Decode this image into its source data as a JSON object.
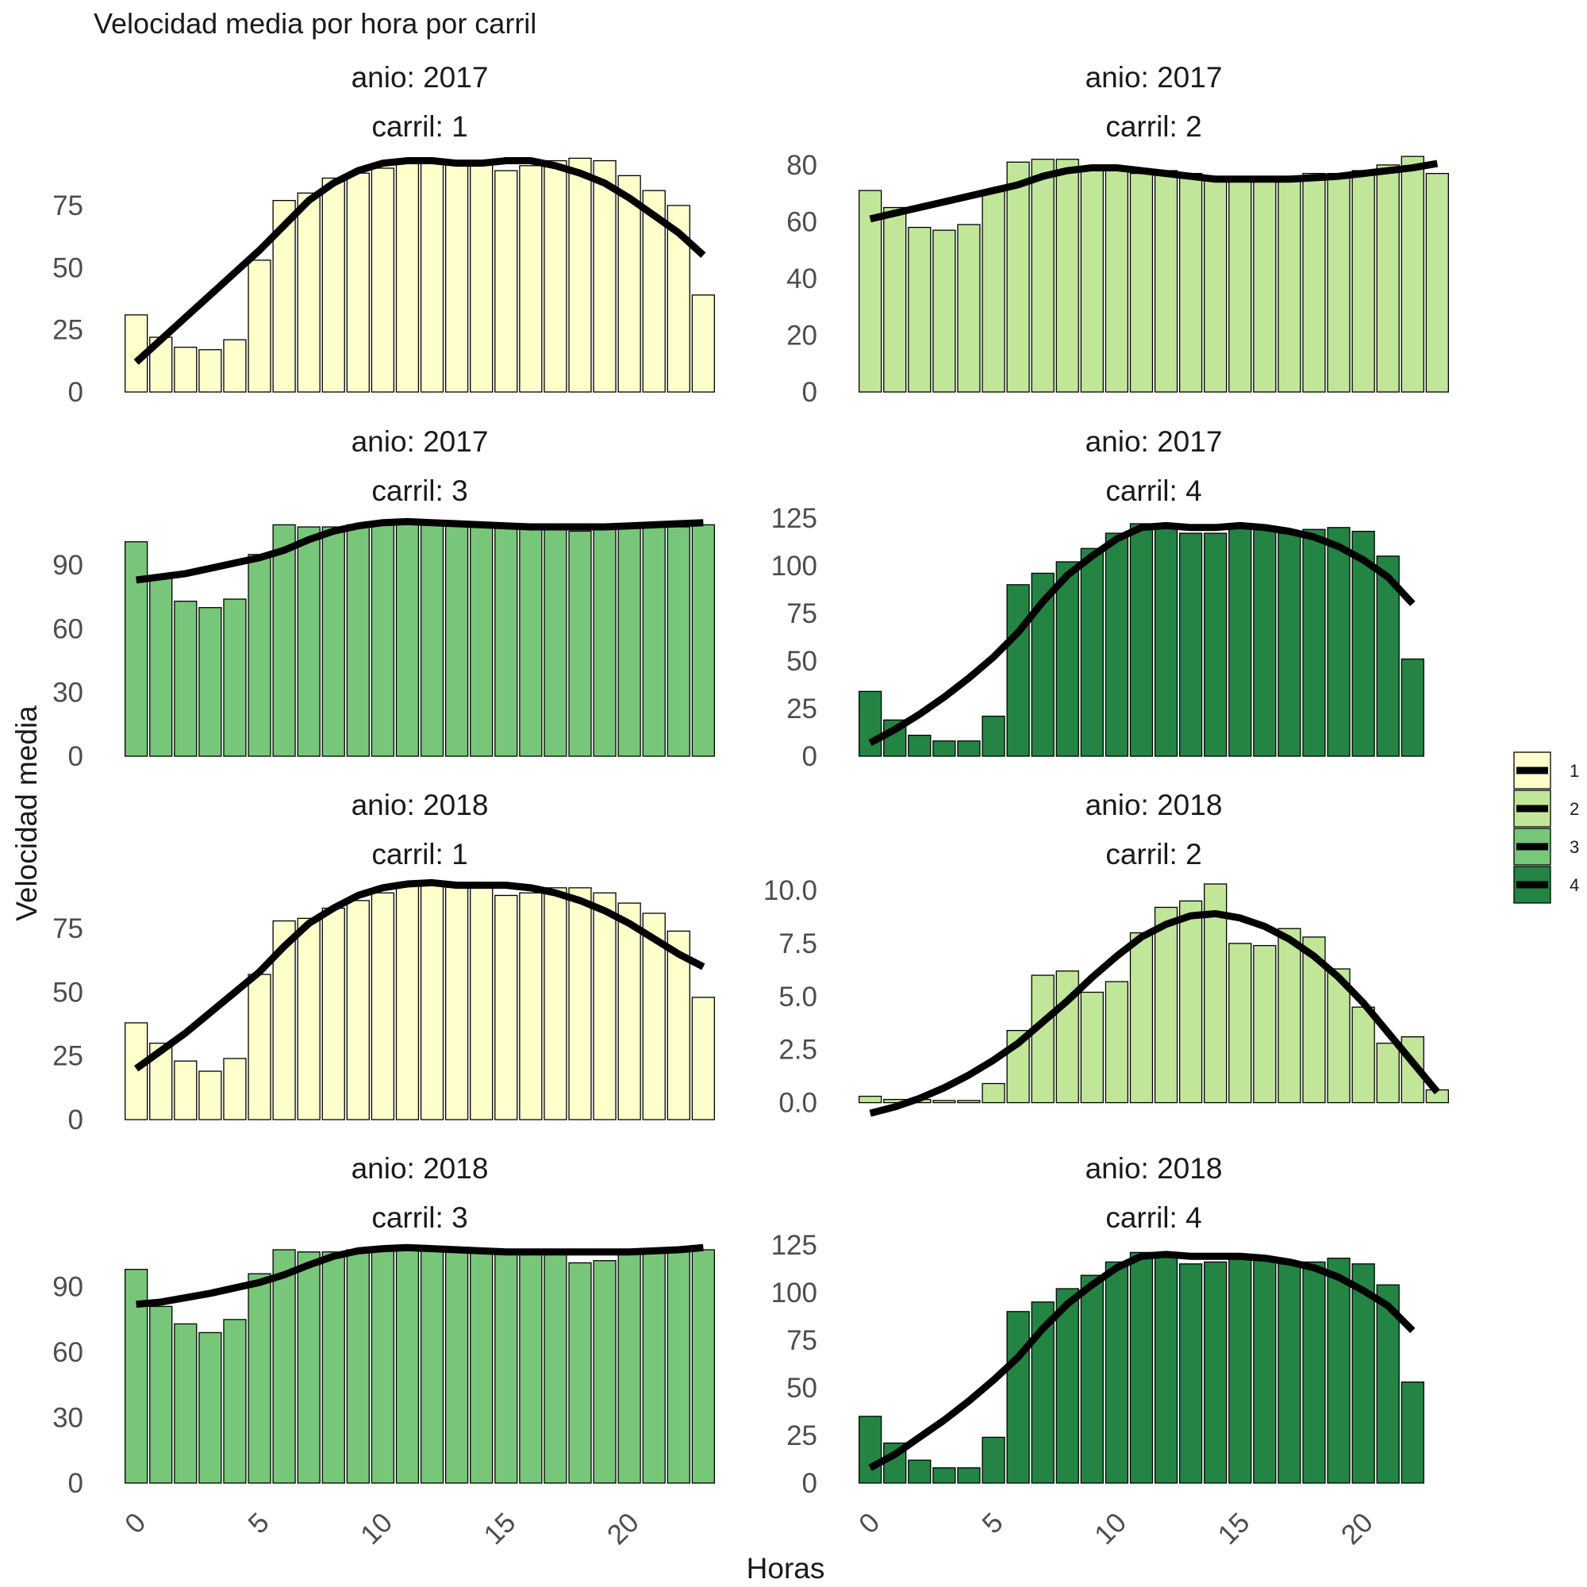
{
  "chart_data": {
    "type": "bar",
    "title": "Velocidad media por hora por carril",
    "xlabel": "Horas",
    "ylabel": "Velocidad media",
    "x_ticks": [
      0,
      5,
      10,
      15,
      20
    ],
    "xlim": [
      -0.6,
      23.6
    ],
    "legend": {
      "position": "right",
      "title": "",
      "entries": [
        {
          "label": "1",
          "color": "#FFFFCC"
        },
        {
          "label": "2",
          "color": "#C2E699"
        },
        {
          "label": "3",
          "color": "#78C679"
        },
        {
          "label": "4",
          "color": "#238443"
        }
      ]
    },
    "facets": [
      {
        "strip1": "anio: 2017",
        "strip2": "carril: 1",
        "fill": "#FFFFCC",
        "ylim": [
          0,
          97
        ],
        "yticks": [
          0,
          25,
          50,
          75
        ],
        "ytick_labels": [
          "0",
          "25",
          "50",
          "75"
        ],
        "values": [
          31,
          22,
          18,
          17,
          21,
          53,
          77,
          80,
          86,
          88,
          90,
          93,
          93,
          92,
          93,
          89,
          91,
          93,
          94,
          93,
          87,
          81,
          75,
          39
        ],
        "smooth": [
          12,
          21,
          30,
          39,
          48,
          57,
          67,
          77,
          84,
          89,
          92,
          93,
          93,
          92,
          92,
          93,
          93,
          91,
          88,
          84,
          78,
          71,
          64,
          55
        ]
      },
      {
        "strip1": "anio: 2017",
        "strip2": "carril: 2",
        "fill": "#C2E699",
        "ylim": [
          0,
          85
        ],
        "yticks": [
          0,
          20,
          40,
          60,
          80
        ],
        "ytick_labels": [
          "0",
          "20",
          "40",
          "60",
          "80"
        ],
        "values": [
          71,
          65,
          58,
          57,
          59,
          71,
          81,
          82,
          82,
          79,
          78,
          77,
          78,
          77,
          76,
          76,
          76,
          76,
          77,
          77,
          78,
          80,
          83,
          77
        ],
        "smooth": [
          61,
          63,
          65,
          67,
          69,
          71,
          73,
          76,
          78,
          79,
          79,
          78,
          77,
          76,
          75,
          75,
          75,
          75,
          75.5,
          76,
          77,
          78,
          79,
          80.5
        ]
      },
      {
        "strip1": "anio: 2017",
        "strip2": "carril: 3",
        "fill": "#78C679",
        "ylim": [
          0,
          114
        ],
        "yticks": [
          0,
          30,
          60,
          90
        ],
        "ytick_labels": [
          "0",
          "30",
          "60",
          "90"
        ],
        "values": [
          101,
          85,
          73,
          70,
          74,
          95,
          109,
          108,
          108,
          109,
          110,
          110,
          110,
          109,
          108,
          108,
          108,
          107,
          106,
          107,
          108,
          108,
          108,
          109
        ],
        "smooth": [
          83,
          84.5,
          86,
          88.5,
          91,
          93.5,
          97,
          102,
          106,
          108.5,
          110,
          110.5,
          110,
          109.5,
          109,
          108.5,
          108,
          108,
          108,
          108,
          108.5,
          109,
          109.5,
          110
        ]
      },
      {
        "strip1": "anio: 2017",
        "strip2": "carril: 4",
        "fill": "#238443",
        "ylim": [
          0,
          127
        ],
        "yticks": [
          0,
          25,
          50,
          75,
          100,
          125
        ],
        "ytick_labels": [
          "0",
          "25",
          "50",
          "75",
          "100",
          "125"
        ],
        "values": [
          34,
          19,
          11,
          8,
          8,
          21,
          90,
          96,
          102,
          109,
          117,
          122,
          121,
          117,
          117,
          120,
          119,
          117,
          119,
          120,
          118,
          105,
          51,
          0
        ],
        "smooth": [
          7,
          14,
          22,
          31,
          41,
          52,
          65,
          81,
          95,
          105,
          114,
          120,
          121,
          120,
          120,
          121,
          120,
          118,
          115,
          110,
          103,
          94,
          80,
          0
        ],
        "smooth_n": 23
      },
      {
        "strip1": "anio: 2018",
        "strip2": "carril: 1",
        "fill": "#FFFFCC",
        "ylim": [
          0,
          95
        ],
        "yticks": [
          0,
          25,
          50,
          75
        ],
        "ytick_labels": [
          "0",
          "25",
          "50",
          "75"
        ],
        "values": [
          38,
          30,
          23,
          19,
          24,
          57,
          78,
          79,
          83,
          86,
          89,
          93,
          93,
          92,
          91,
          88,
          89,
          91,
          91,
          89,
          85,
          81,
          74,
          48
        ],
        "smooth": [
          20,
          27,
          34,
          42,
          50,
          58,
          68,
          77,
          83,
          88,
          91,
          92.5,
          93,
          92,
          92,
          92,
          91,
          89,
          86,
          82,
          77,
          71,
          65,
          60
        ]
      },
      {
        "strip1": "anio: 2018",
        "strip2": "carril: 2",
        "fill": "#C2E699",
        "ylim": [
          -0.8,
          10.6
        ],
        "yticks": [
          0,
          2.5,
          5,
          7.5,
          10
        ],
        "ytick_labels": [
          "0.0",
          "2.5",
          "5.0",
          "7.5",
          "10.0"
        ],
        "values": [
          0.3,
          0.15,
          0.15,
          0.1,
          0.1,
          0.9,
          3.4,
          6.0,
          6.2,
          5.2,
          5.7,
          8.0,
          9.2,
          9.5,
          10.3,
          7.5,
          7.4,
          8.2,
          7.8,
          6.3,
          4.5,
          2.8,
          3.1,
          0.6
        ],
        "smooth": [
          -0.5,
          -0.2,
          0.2,
          0.7,
          1.3,
          2.0,
          2.8,
          3.8,
          4.8,
          5.9,
          6.9,
          7.8,
          8.4,
          8.8,
          8.9,
          8.7,
          8.3,
          7.7,
          6.9,
          5.9,
          4.7,
          3.3,
          1.9,
          0.5
        ]
      },
      {
        "strip1": "anio: 2018",
        "strip2": "carril: 3",
        "fill": "#78C679",
        "ylim": [
          0,
          111
        ],
        "yticks": [
          0,
          30,
          60,
          90
        ],
        "ytick_labels": [
          "0",
          "30",
          "60",
          "90"
        ],
        "values": [
          98,
          81,
          73,
          69,
          75,
          96,
          107,
          106,
          106,
          107,
          108,
          108,
          107,
          106,
          106,
          106,
          105,
          105,
          101,
          102,
          106,
          107,
          107,
          107
        ],
        "smooth": [
          82,
          83,
          85,
          87,
          89.5,
          92,
          95.5,
          100,
          104,
          106.5,
          107.5,
          108,
          107.5,
          107,
          106.5,
          106,
          106,
          106,
          106,
          106,
          106,
          106.5,
          107,
          108
        ]
      },
      {
        "strip1": "anio: 2018",
        "strip2": "carril: 4",
        "fill": "#238443",
        "ylim": [
          0,
          127
        ],
        "yticks": [
          0,
          25,
          50,
          75,
          100,
          125
        ],
        "ytick_labels": [
          "0",
          "25",
          "50",
          "75",
          "100",
          "125"
        ],
        "values": [
          35,
          21,
          12,
          8,
          8,
          24,
          90,
          95,
          102,
          109,
          116,
          121,
          119,
          115,
          116,
          119,
          118,
          115,
          116,
          118,
          115,
          104,
          53,
          0
        ],
        "smooth": [
          8,
          15,
          24,
          33,
          43,
          54,
          66,
          81,
          94,
          104,
          113,
          119,
          120,
          119,
          119,
          119,
          118,
          116,
          113,
          108,
          101,
          93,
          80,
          0
        ],
        "smooth_n": 23
      }
    ]
  }
}
